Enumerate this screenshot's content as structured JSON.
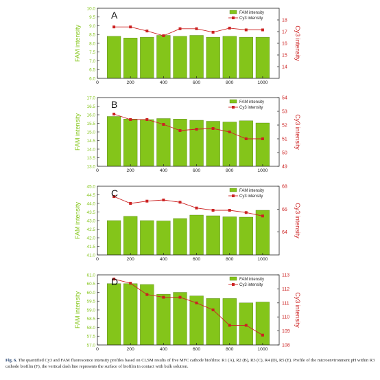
{
  "chart_data": [
    {
      "type": "bar",
      "panel_label": "A",
      "x": [
        100,
        200,
        300,
        400,
        500,
        600,
        700,
        800,
        900,
        1000
      ],
      "series": [
        {
          "name": "FAM intensity",
          "kind": "bar",
          "axis": "left",
          "values": [
            8.4,
            8.3,
            8.35,
            8.45,
            8.4,
            8.45,
            8.35,
            8.4,
            8.35,
            8.35
          ]
        },
        {
          "name": "Cy3 intensity",
          "kind": "line",
          "axis": "right",
          "values": [
            17.4,
            17.4,
            17.05,
            16.65,
            17.25,
            17.25,
            16.95,
            17.3,
            17.15,
            17.15
          ]
        }
      ],
      "ylabel": "FAM intensity",
      "ylim": [
        6.0,
        10.0
      ],
      "yticks": [
        "6.0",
        "6.5",
        "7.0",
        "7.5",
        "8.0",
        "8.5",
        "9.0",
        "9.5",
        "10.0"
      ],
      "y2label": "Cy3 intensity",
      "y2lim": [
        13,
        19
      ],
      "y2ticks": [
        "14",
        "15",
        "16",
        "17",
        "18"
      ],
      "xlim": [
        0,
        1100
      ],
      "xticks": [
        "0",
        "200",
        "400",
        "600",
        "800",
        "1000"
      ],
      "legend": [
        "FAM intensity",
        "Cy3 intensity"
      ],
      "legend_position": "top-right"
    },
    {
      "type": "bar",
      "panel_label": "B",
      "x": [
        100,
        200,
        300,
        400,
        500,
        600,
        700,
        800,
        900,
        1000
      ],
      "series": [
        {
          "name": "FAM intensity",
          "kind": "bar",
          "axis": "left",
          "values": [
            15.9,
            15.75,
            15.72,
            15.78,
            15.75,
            15.68,
            15.62,
            15.58,
            15.65,
            15.52
          ]
        },
        {
          "name": "Cy3 intensity",
          "kind": "line",
          "axis": "right",
          "values": [
            52.8,
            52.4,
            52.4,
            52.05,
            51.6,
            51.7,
            51.75,
            51.5,
            51.0,
            51.0
          ]
        }
      ],
      "ylabel": "FAM intensity",
      "ylim": [
        13.0,
        17.0
      ],
      "yticks": [
        "13.0",
        "13.5",
        "14.0",
        "14.5",
        "15.0",
        "15.5",
        "16.0",
        "16.5",
        "17.0"
      ],
      "y2label": "Cy3 intensity",
      "y2lim": [
        49,
        54
      ],
      "y2ticks": [
        "49",
        "50",
        "51",
        "52",
        "53",
        "54"
      ],
      "xlim": [
        0,
        1100
      ],
      "xticks": [
        "0",
        "200",
        "400",
        "600",
        "800",
        "1000"
      ],
      "legend": [
        "FAM intensity",
        "Cy3 intensity"
      ],
      "legend_position": "top-right"
    },
    {
      "type": "bar",
      "panel_label": "C",
      "x": [
        100,
        200,
        300,
        400,
        500,
        600,
        700,
        800,
        900,
        1000
      ],
      "series": [
        {
          "name": "FAM intensity",
          "kind": "bar",
          "axis": "left",
          "values": [
            43.0,
            43.25,
            43.0,
            42.98,
            43.12,
            43.32,
            43.28,
            43.22,
            43.2,
            43.6
          ]
        },
        {
          "name": "Cy3 intensity",
          "kind": "line",
          "axis": "right",
          "values": [
            67.1,
            66.5,
            66.7,
            66.8,
            66.6,
            66.1,
            65.9,
            65.9,
            65.7,
            65.4
          ]
        }
      ],
      "ylabel": "FAM intensity",
      "ylim": [
        41.0,
        45.0
      ],
      "yticks": [
        "41.0",
        "41.5",
        "42.0",
        "42.5",
        "43.0",
        "43.5",
        "44.0",
        "44.5",
        "45.0"
      ],
      "y2label": "Cy3 intensity",
      "y2lim": [
        62,
        68
      ],
      "y2ticks": [
        "64",
        "66",
        "68"
      ],
      "xlim": [
        0,
        1100
      ],
      "xticks": [
        "0",
        "200",
        "400",
        "600",
        "800",
        "1000"
      ],
      "legend": [
        "FAM intensity",
        "Cy3 intensity"
      ],
      "legend_position": "top-right"
    },
    {
      "type": "bar",
      "panel_label": "D",
      "x": [
        100,
        200,
        300,
        400,
        500,
        600,
        700,
        800,
        900,
        1000
      ],
      "series": [
        {
          "name": "FAM intensity",
          "kind": "bar",
          "axis": "left",
          "values": [
            60.5,
            60.5,
            60.45,
            59.9,
            60.0,
            59.8,
            59.65,
            59.65,
            59.4,
            59.45
          ]
        },
        {
          "name": "Cy3 intensity",
          "kind": "line",
          "axis": "right",
          "values": [
            112.7,
            112.4,
            111.6,
            111.4,
            111.4,
            111.0,
            110.5,
            109.4,
            109.4,
            108.7
          ]
        }
      ],
      "ylabel": "FAM intensity",
      "ylim": [
        57.0,
        61.0
      ],
      "yticks": [
        "57.0",
        "57.5",
        "58.0",
        "58.5",
        "59.0",
        "59.5",
        "60.0",
        "60.5",
        "61.0"
      ],
      "y2label": "Cy3 intensity",
      "y2lim": [
        108,
        113
      ],
      "y2ticks": [
        "108",
        "109",
        "110",
        "111",
        "112",
        "113"
      ],
      "xlim": [
        0,
        1100
      ],
      "xticks": [
        "0",
        "200",
        "400",
        "600",
        "800",
        "1000"
      ],
      "legend": [
        "FAM intensity",
        "Cy3 intensity"
      ],
      "legend_position": "top-right"
    }
  ],
  "colors": {
    "bar_fill": "#84c51a",
    "bar_edge": "#4e7a10",
    "line": "#cc2222",
    "left_axis": "#84c51a",
    "right_axis": "#cc2222"
  },
  "caption": {
    "lead": "Fig. 6.",
    "text": "The quantified Cy3 and FAM fluorescence intensity profiles based on CLSM results of five MFC cathode biofilms: R1 (A), R2 (B), R3 (C), R4 (D), R5 (E). Profile of the microenvironment pH within R3 cathode biofilm (F), the vertical dash line represents the surface of biofilm in contact with bulk solution."
  }
}
